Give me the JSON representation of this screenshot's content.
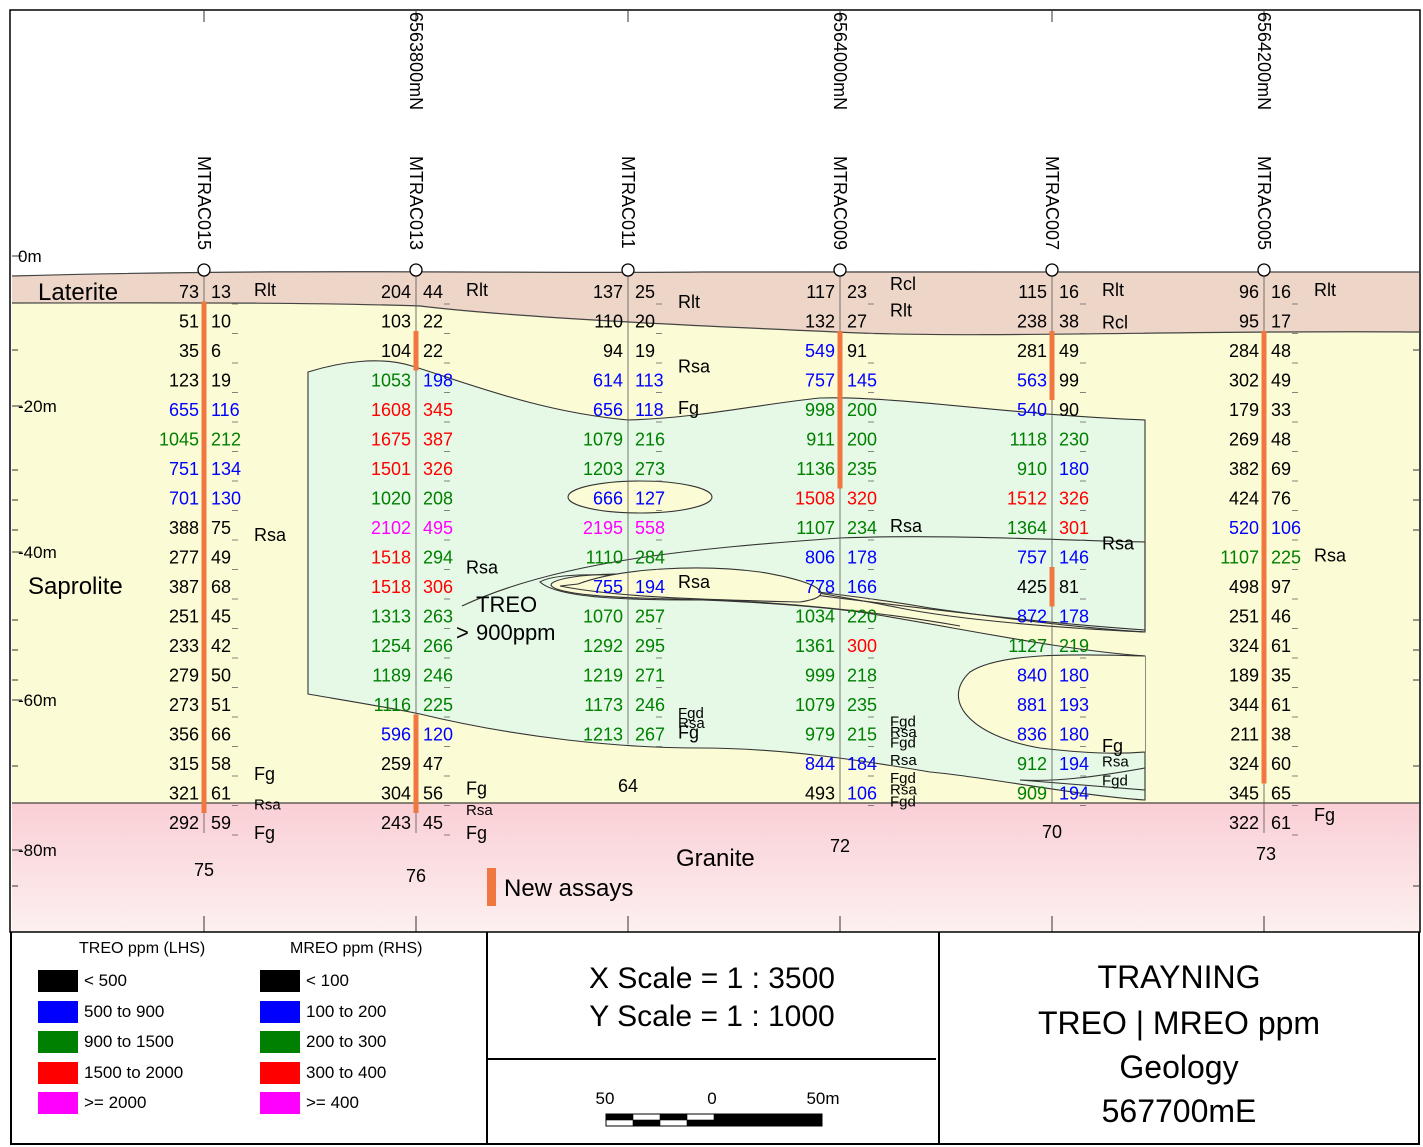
{
  "colors": {
    "black": "#000000",
    "blue": "#0000ff",
    "green": "#008000",
    "red": "#ff0000",
    "magenta": "#ff00ff",
    "laterite": "#edd5c8",
    "saprolite": "#fbfbd5",
    "granite_top": "#f9cfd5",
    "granite_bottom": "#fdf0f0",
    "treo_zone": "#e6f9e7",
    "new_assay": "#f07840"
  },
  "depth_labels": [
    "0m",
    "-20m",
    "-40m",
    "-60m",
    "-80m"
  ],
  "northings": [
    "6563800mN",
    "6564000mN",
    "6564200mN"
  ],
  "units": {
    "laterite": "Laterite",
    "saprolite": "Saprolite",
    "granite": "Granite"
  },
  "treo_zone_label": [
    "TREO",
    "900ppm"
  ],
  "treo_zone_symbol": ">",
  "new_assays_label": "New assays",
  "holes": [
    {
      "id": "MTRAC015",
      "end_depth": "75",
      "assays": [
        [
          "73",
          "13",
          "k",
          "k"
        ],
        [
          "51",
          "10",
          "k",
          "k"
        ],
        [
          "35",
          "6",
          "k",
          "k"
        ],
        [
          "123",
          "19",
          "k",
          "k"
        ],
        [
          "655",
          "116",
          "b",
          "b"
        ],
        [
          "1045",
          "212",
          "g",
          "g"
        ],
        [
          "751",
          "134",
          "b",
          "b"
        ],
        [
          "701",
          "130",
          "b",
          "b"
        ],
        [
          "388",
          "75",
          "k",
          "k"
        ],
        [
          "277",
          "49",
          "k",
          "k"
        ],
        [
          "387",
          "68",
          "k",
          "k"
        ],
        [
          "251",
          "45",
          "k",
          "k"
        ],
        [
          "233",
          "42",
          "k",
          "k"
        ],
        [
          "279",
          "50",
          "k",
          "k"
        ],
        [
          "273",
          "51",
          "k",
          "k"
        ],
        [
          "356",
          "66",
          "k",
          "k"
        ],
        [
          "315",
          "58",
          "k",
          "k"
        ],
        [
          "321",
          "61",
          "k",
          "k"
        ],
        [
          "292",
          "59",
          "k",
          "k"
        ]
      ],
      "geology": [
        [
          "Rlt",
          0
        ],
        [
          "Rsa",
          8.3
        ],
        [
          "Fg",
          16.4
        ],
        [
          "Rsa",
          17.4
        ],
        [
          "Fg",
          18.4
        ]
      ]
    },
    {
      "id": "MTRAC013",
      "end_depth": "76",
      "assays": [
        [
          "204",
          "44",
          "k",
          "k"
        ],
        [
          "103",
          "22",
          "k",
          "k"
        ],
        [
          "104",
          "22",
          "k",
          "k"
        ],
        [
          "1053",
          "198",
          "g",
          "b"
        ],
        [
          "1608",
          "345",
          "r",
          "r"
        ],
        [
          "1675",
          "387",
          "r",
          "r"
        ],
        [
          "1501",
          "326",
          "r",
          "r"
        ],
        [
          "1020",
          "208",
          "g",
          "g"
        ],
        [
          "2102",
          "495",
          "m",
          "m"
        ],
        [
          "1518",
          "294",
          "r",
          "g"
        ],
        [
          "1518",
          "306",
          "r",
          "r"
        ],
        [
          "1313",
          "263",
          "g",
          "g"
        ],
        [
          "1254",
          "266",
          "g",
          "g"
        ],
        [
          "1189",
          "246",
          "g",
          "g"
        ],
        [
          "1116",
          "225",
          "g",
          "g"
        ],
        [
          "596",
          "120",
          "b",
          "b"
        ],
        [
          "259",
          "47",
          "k",
          "k"
        ],
        [
          "304",
          "56",
          "k",
          "k"
        ],
        [
          "243",
          "45",
          "k",
          "k"
        ]
      ],
      "geology": [
        [
          "Rlt",
          0
        ],
        [
          "Rsa",
          9.4
        ],
        [
          "Fg",
          16.9
        ],
        [
          "Rsa",
          17.6
        ],
        [
          "Fg",
          18.4
        ]
      ]
    },
    {
      "id": "MTRAC011",
      "end_depth": "64",
      "assays": [
        [
          "137",
          "25",
          "k",
          "k"
        ],
        [
          "110",
          "20",
          "k",
          "k"
        ],
        [
          "94",
          "19",
          "k",
          "k"
        ],
        [
          "614",
          "113",
          "b",
          "b"
        ],
        [
          "656",
          "118",
          "b",
          "b"
        ],
        [
          "1079",
          "216",
          "g",
          "g"
        ],
        [
          "1203",
          "273",
          "g",
          "g"
        ],
        [
          "666",
          "127",
          "b",
          "b"
        ],
        [
          "2195",
          "558",
          "m",
          "m"
        ],
        [
          "1110",
          "284",
          "g",
          "g"
        ],
        [
          "755",
          "194",
          "b",
          "b"
        ],
        [
          "1070",
          "257",
          "g",
          "g"
        ],
        [
          "1292",
          "295",
          "g",
          "g"
        ],
        [
          "1219",
          "271",
          "g",
          "g"
        ],
        [
          "1173",
          "246",
          "g",
          "g"
        ],
        [
          "1213",
          "267",
          "g",
          "g"
        ]
      ],
      "geology": [
        [
          "Rlt",
          0.4
        ],
        [
          "Rsa",
          2.6
        ],
        [
          "Fg",
          4.0
        ],
        [
          "Rsa",
          9.9
        ],
        [
          "Fgd",
          14.3
        ],
        [
          "Rsa",
          14.65
        ],
        [
          "Fg",
          15.0
        ]
      ],
      "bottom_label": "64"
    },
    {
      "id": "MTRAC009",
      "end_depth": "72",
      "assays": [
        [
          "117",
          "23",
          "k",
          "k"
        ],
        [
          "132",
          "27",
          "k",
          "k"
        ],
        [
          "549",
          "91",
          "b",
          "k"
        ],
        [
          "757",
          "145",
          "b",
          "b"
        ],
        [
          "998",
          "200",
          "g",
          "g"
        ],
        [
          "911",
          "200",
          "g",
          "g"
        ],
        [
          "1136",
          "235",
          "g",
          "g"
        ],
        [
          "1508",
          "320",
          "r",
          "r"
        ],
        [
          "1107",
          "234",
          "g",
          "g"
        ],
        [
          "806",
          "178",
          "b",
          "b"
        ],
        [
          "778",
          "166",
          "b",
          "b"
        ],
        [
          "1034",
          "220",
          "g",
          "g"
        ],
        [
          "1361",
          "300",
          "g",
          "r"
        ],
        [
          "999",
          "218",
          "g",
          "g"
        ],
        [
          "1079",
          "235",
          "g",
          "g"
        ],
        [
          "979",
          "215",
          "g",
          "g"
        ],
        [
          "844",
          "184",
          "b",
          "b"
        ],
        [
          "493",
          "106",
          "k",
          "b"
        ]
      ],
      "geology": [
        [
          "Rcl",
          -0.2
        ],
        [
          "Rlt",
          0.7
        ],
        [
          "Rsa",
          8.0
        ],
        [
          "Fgd",
          14.6
        ],
        [
          "Rsa",
          14.95
        ],
        [
          "Fgd",
          15.3
        ],
        [
          "Rsa",
          15.9
        ],
        [
          "Fgd",
          16.5
        ],
        [
          "Rsa",
          16.9
        ],
        [
          "Fgd",
          17.3
        ]
      ]
    },
    {
      "id": "MTRAC007",
      "end_depth": "70",
      "assays": [
        [
          "115",
          "16",
          "k",
          "k"
        ],
        [
          "238",
          "38",
          "k",
          "k"
        ],
        [
          "281",
          "49",
          "k",
          "k"
        ],
        [
          "563",
          "99",
          "b",
          "k"
        ],
        [
          "540",
          "90",
          "b",
          "k"
        ],
        [
          "1118",
          "230",
          "g",
          "g"
        ],
        [
          "910",
          "180",
          "g",
          "b"
        ],
        [
          "1512",
          "326",
          "r",
          "r"
        ],
        [
          "1364",
          "301",
          "g",
          "r"
        ],
        [
          "757",
          "146",
          "b",
          "b"
        ],
        [
          "425",
          "81",
          "k",
          "k"
        ],
        [
          "872",
          "178",
          "b",
          "b"
        ],
        [
          "1127",
          "219",
          "g",
          "g"
        ],
        [
          "840",
          "180",
          "b",
          "b"
        ],
        [
          "881",
          "193",
          "b",
          "b"
        ],
        [
          "836",
          "180",
          "b",
          "b"
        ],
        [
          "912",
          "194",
          "g",
          "b"
        ],
        [
          "909",
          "194",
          "g",
          "b"
        ]
      ],
      "geology": [
        [
          "Rlt",
          0
        ],
        [
          "Rcl",
          1.1
        ],
        [
          "Rsa",
          8.6
        ],
        [
          "Fg",
          15.45
        ],
        [
          "Rsa",
          15.95
        ],
        [
          "Fgd",
          16.6
        ]
      ]
    },
    {
      "id": "MTRAC005",
      "end_depth": "73",
      "assays": [
        [
          "96",
          "16",
          "k",
          "k"
        ],
        [
          "95",
          "17",
          "k",
          "k"
        ],
        [
          "284",
          "48",
          "k",
          "k"
        ],
        [
          "302",
          "49",
          "k",
          "k"
        ],
        [
          "179",
          "33",
          "k",
          "k"
        ],
        [
          "269",
          "48",
          "k",
          "k"
        ],
        [
          "382",
          "69",
          "k",
          "k"
        ],
        [
          "424",
          "76",
          "k",
          "k"
        ],
        [
          "520",
          "106",
          "b",
          "b"
        ],
        [
          "1107",
          "225",
          "g",
          "g"
        ],
        [
          "498",
          "97",
          "k",
          "k"
        ],
        [
          "251",
          "46",
          "k",
          "k"
        ],
        [
          "324",
          "61",
          "k",
          "k"
        ],
        [
          "189",
          "35",
          "k",
          "k"
        ],
        [
          "344",
          "61",
          "k",
          "k"
        ],
        [
          "211",
          "38",
          "k",
          "k"
        ],
        [
          "324",
          "60",
          "k",
          "k"
        ],
        [
          "345",
          "65",
          "k",
          "k"
        ],
        [
          "322",
          "61",
          "k",
          "k"
        ]
      ],
      "geology": [
        [
          "Rlt",
          0
        ],
        [
          "Rsa",
          9
        ],
        [
          "Fg",
          17.8
        ]
      ]
    }
  ],
  "legend": {
    "treo_heading": "TREO ppm (LHS)",
    "mreo_heading": "MREO ppm (RHS)",
    "treo": [
      [
        "#000000",
        "< 500"
      ],
      [
        "#0000ff",
        "500 to 900"
      ],
      [
        "#008000",
        "900 to 1500"
      ],
      [
        "#ff0000",
        "1500 to 2000"
      ],
      [
        "#ff00ff",
        ">= 2000"
      ]
    ],
    "mreo": [
      [
        "#000000",
        "< 100"
      ],
      [
        "#0000ff",
        "100 to 200"
      ],
      [
        "#008000",
        "200 to 300"
      ],
      [
        "#ff0000",
        "300 to 400"
      ],
      [
        "#ff00ff",
        ">= 400"
      ]
    ]
  },
  "scale": {
    "x": "X Scale = 1 : 3500",
    "y": "Y Scale = 1 : 1000",
    "bar_labels": [
      "50",
      "0",
      "50m"
    ]
  },
  "title": {
    "line1": "TRAYNING",
    "line2": "TREO | MREO ppm",
    "line3": "Geology",
    "line4": "567700mE"
  }
}
